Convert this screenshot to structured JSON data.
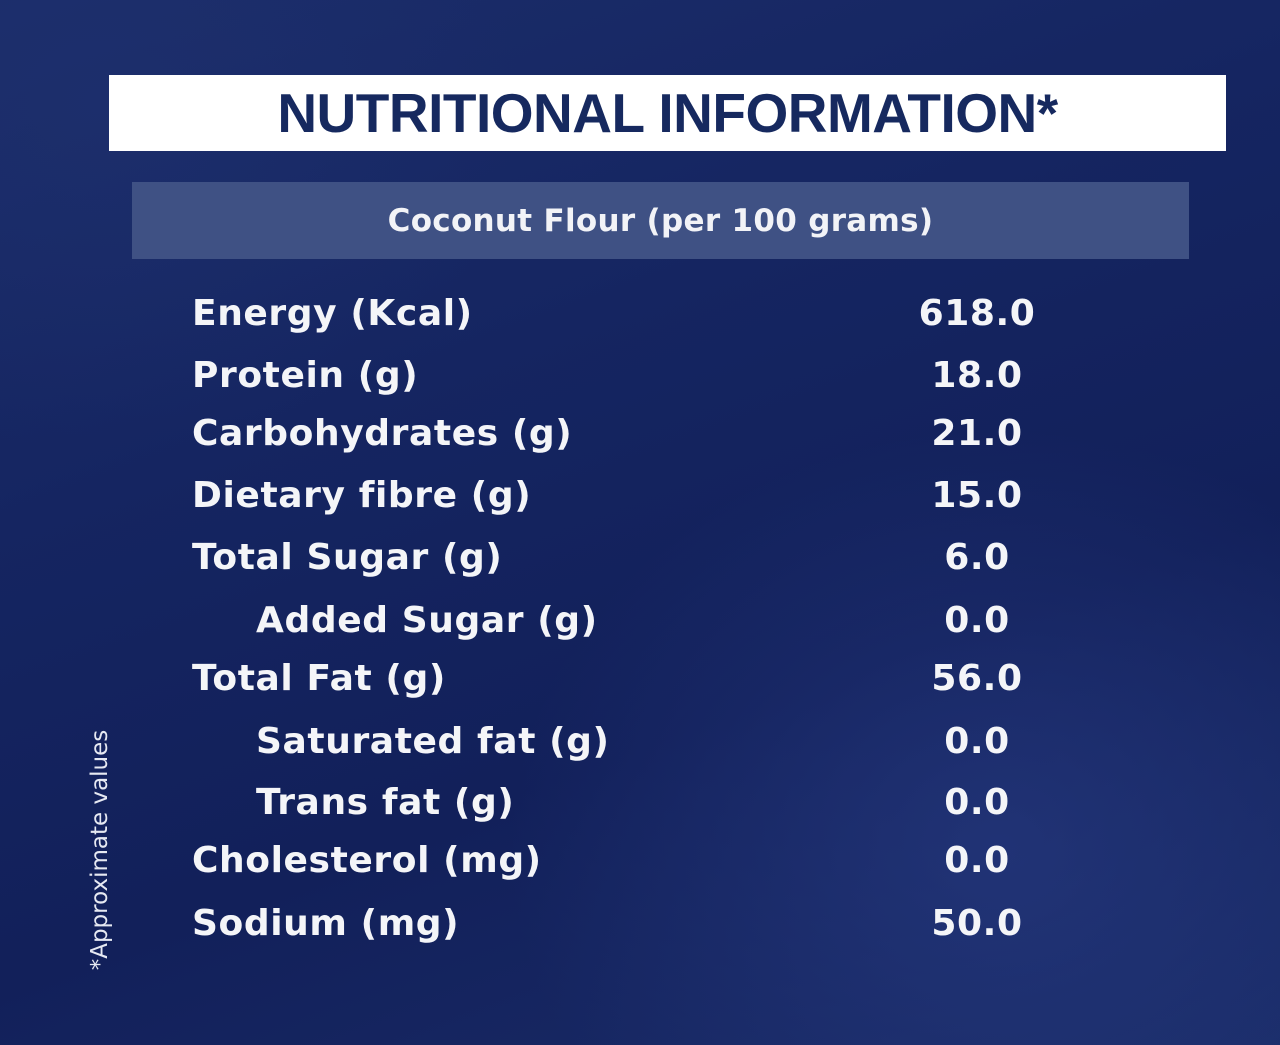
{
  "title": "NUTRITIONAL INFORMATION*",
  "subtitle": "Coconut Flour (per 100 grams)",
  "nutrients": [
    {
      "label": "Energy (Kcal)",
      "value": "618.0",
      "indent": false
    },
    {
      "label": "Protein (g)",
      "value": "18.0",
      "indent": false
    },
    {
      "label": "Carbohydrates (g)",
      "value": "21.0",
      "indent": false
    },
    {
      "label": "Dietary fibre (g)",
      "value": "15.0",
      "indent": false
    },
    {
      "label": "Total Sugar (g)",
      "value": "6.0",
      "indent": false
    },
    {
      "label": "Added Sugar (g)",
      "value": "0.0",
      "indent": true
    },
    {
      "label": "Total Fat (g)",
      "value": "56.0",
      "indent": false
    },
    {
      "label": "Saturated fat (g)",
      "value": "0.0",
      "indent": true
    },
    {
      "label": "Trans fat (g)",
      "value": "0.0",
      "indent": true
    },
    {
      "label": "Cholesterol (mg)",
      "value": "0.0",
      "indent": false
    },
    {
      "label": "Sodium (mg)",
      "value": "50.0",
      "indent": false
    }
  ],
  "footnote": "*Approximate values",
  "colors": {
    "background": "#152561",
    "title_bar": "#ffffff",
    "title_text": "#16295f",
    "subtitle_bar": "#3f5184",
    "text": "#f4f5f8"
  }
}
